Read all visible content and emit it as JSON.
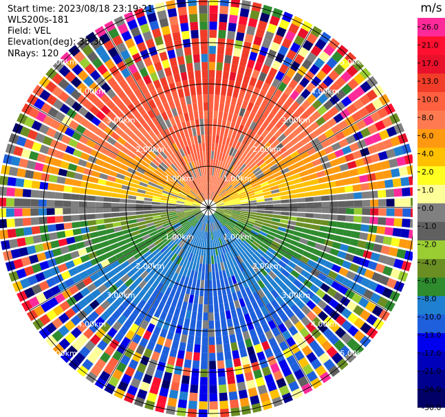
{
  "header": {
    "start_time": "Start time: 2023/08/18 23:19:21",
    "instrument": "WLS200s-181",
    "field": "Field: VEL",
    "elevation": "Elevation(deg): 35.30",
    "nrays": "NRays: 120"
  },
  "chart_data": {
    "type": "heatmap",
    "projection": "polar-ppi",
    "field": "VEL",
    "units": "m/s",
    "n_rays": 120,
    "elevation_deg": 35.3,
    "range_rings_km": [
      1.0,
      2.0,
      3.0,
      4.0,
      5.0
    ],
    "range_ring_labels": [
      "1.00km",
      "2.00km",
      "3.00km",
      "4.00km",
      "5.00km"
    ],
    "spoke_angles_deg": [
      0,
      30,
      60,
      90,
      120,
      150,
      180,
      210,
      240,
      270,
      300,
      330
    ],
    "colorbar": {
      "title": "m/s",
      "tick_labels": [
        "26.0",
        "21.0",
        "17.0",
        "13.0",
        "10.0",
        "8.0",
        "6.0",
        "4.0",
        "2.0",
        "1.0",
        "0.0",
        "-1.0",
        "-2.0",
        "-4.0",
        "-6.0",
        "-8.0",
        "-10.0",
        "-13.0",
        "-17.0",
        "-21.0",
        "-26.0",
        "-30.0"
      ],
      "colors": [
        "#ff2a9a",
        "#ff1030",
        "#e8102a",
        "#f03c28",
        "#ff6040",
        "#ff7a50",
        "#ff9a10",
        "#ffc000",
        "#ffff20",
        "#ffff99",
        "#808080",
        "#606060",
        "#9acd32",
        "#6b8e23",
        "#2e8b2e",
        "#1f7fd0",
        "#1e5fdc",
        "#0000ee",
        "#0000bb",
        "#000090",
        "#000066"
      ]
    }
  }
}
